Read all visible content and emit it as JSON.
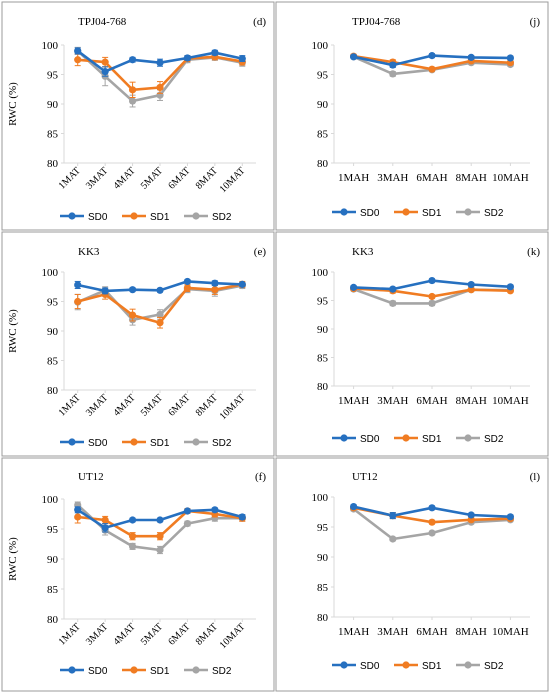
{
  "colors": {
    "SD0": "#2670C0",
    "SD1": "#F07C22",
    "SD2": "#A5A5A5",
    "axis": "#d9d9d9",
    "frame": "#9b9b9b"
  },
  "chart_data": [
    {
      "type": "line",
      "panel_tag": "(d)",
      "title": "TPJ04-768",
      "ylabel": "RWC (%)",
      "categories": [
        "1MAT",
        "3MAT",
        "4MAT",
        "5MAT",
        "6MAT",
        "8MAT",
        "10MAT"
      ],
      "ylim": [
        80,
        100
      ],
      "yticks": [
        80,
        85,
        90,
        95,
        100
      ],
      "rotate_x": true,
      "series": [
        {
          "name": "SD0",
          "values": [
            99.0,
            95.5,
            97.5,
            97.0,
            97.8,
            98.7,
            97.7
          ],
          "errors": [
            0.5,
            0.8,
            0.4,
            0.6,
            0.4,
            0.4,
            0.5
          ]
        },
        {
          "name": "SD1",
          "values": [
            97.5,
            97.1,
            92.4,
            92.8,
            97.7,
            98.0,
            97.2
          ],
          "errors": [
            1.0,
            0.8,
            1.3,
            1.0,
            0.5,
            0.5,
            0.6
          ]
        },
        {
          "name": "SD2",
          "values": [
            99.0,
            94.7,
            90.5,
            91.5,
            97.5,
            97.9,
            97.0
          ],
          "errors": [
            0.6,
            1.6,
            1.0,
            0.9,
            0.5,
            0.5,
            0.6
          ]
        }
      ]
    },
    {
      "type": "line",
      "panel_tag": "(j)",
      "title": "TPJ04-768",
      "ylabel": "",
      "categories": [
        "1MAH",
        "3MAH",
        "6MAH",
        "8MAH",
        "10MAH"
      ],
      "ylim": [
        80,
        100
      ],
      "yticks": [
        80,
        85,
        90,
        95,
        100
      ],
      "rotate_x": false,
      "series": [
        {
          "name": "SD0",
          "values": [
            98.0,
            96.6,
            98.2,
            97.9,
            97.8
          ],
          "errors": [
            0.3,
            0.4,
            0.3,
            0.3,
            0.3
          ]
        },
        {
          "name": "SD1",
          "values": [
            98.1,
            97.1,
            95.9,
            97.3,
            97.0
          ],
          "errors": [
            0.3,
            0.4,
            0.3,
            0.3,
            0.3
          ]
        },
        {
          "name": "SD2",
          "values": [
            98.0,
            95.1,
            95.8,
            97.0,
            96.7
          ],
          "errors": [
            0.3,
            0.4,
            0.3,
            0.3,
            0.3
          ]
        }
      ]
    },
    {
      "type": "line",
      "panel_tag": "(e)",
      "title": "KK3",
      "ylabel": "RWC (%)",
      "categories": [
        "1MAT",
        "3MAT",
        "4MAT",
        "5MAT",
        "6MAT",
        "8MAT",
        "10MAT"
      ],
      "ylim": [
        80,
        100
      ],
      "yticks": [
        80,
        85,
        90,
        95,
        100
      ],
      "rotate_x": true,
      "series": [
        {
          "name": "SD0",
          "values": [
            97.8,
            96.8,
            97.0,
            96.9,
            98.4,
            98.1,
            97.9
          ],
          "errors": [
            0.6,
            0.5,
            0.3,
            0.3,
            0.3,
            0.4,
            0.3
          ]
        },
        {
          "name": "SD1",
          "values": [
            95.0,
            96.2,
            92.7,
            91.4,
            97.3,
            97.0,
            97.9
          ],
          "errors": [
            1.2,
            0.8,
            1.0,
            0.9,
            0.6,
            0.8,
            0.5
          ]
        },
        {
          "name": "SD2",
          "values": [
            94.9,
            96.9,
            91.9,
            92.8,
            97.1,
            96.8,
            97.7
          ],
          "errors": [
            1.3,
            0.6,
            0.9,
            0.8,
            0.6,
            0.9,
            0.5
          ]
        }
      ]
    },
    {
      "type": "line",
      "panel_tag": "(k)",
      "title": "KK3",
      "ylabel": "",
      "categories": [
        "1MAH",
        "3MAH",
        "6MAH",
        "8MAH",
        "10MAH"
      ],
      "ylim": [
        80,
        100
      ],
      "yticks": [
        80,
        85,
        90,
        95,
        100
      ],
      "rotate_x": false,
      "series": [
        {
          "name": "SD0",
          "values": [
            97.3,
            97.0,
            98.5,
            97.8,
            97.4
          ],
          "errors": [
            0.3,
            0.3,
            0.3,
            0.3,
            0.3
          ]
        },
        {
          "name": "SD1",
          "values": [
            97.1,
            96.7,
            95.7,
            96.9,
            96.7
          ],
          "errors": [
            0.3,
            0.4,
            0.3,
            0.3,
            0.3
          ]
        },
        {
          "name": "SD2",
          "values": [
            97.0,
            94.5,
            94.5,
            96.9,
            96.8
          ],
          "errors": [
            0.3,
            0.4,
            0.4,
            0.3,
            0.3
          ]
        }
      ]
    },
    {
      "type": "line",
      "panel_tag": "(f)",
      "title": "UT12",
      "ylabel": "RWC (%)",
      "categories": [
        "1MAT",
        "3MAT",
        "4MAT",
        "5MAT",
        "6MAT",
        "8MAT",
        "10MAT"
      ],
      "ylim": [
        80,
        100
      ],
      "yticks": [
        80,
        85,
        90,
        95,
        100
      ],
      "rotate_x": true,
      "series": [
        {
          "name": "SD0",
          "values": [
            98.2,
            95.2,
            96.5,
            96.5,
            98.0,
            98.2,
            97.0
          ],
          "errors": [
            0.5,
            0.7,
            0.3,
            0.3,
            0.3,
            0.3,
            0.4
          ]
        },
        {
          "name": "SD1",
          "values": [
            97.0,
            96.5,
            93.8,
            93.8,
            98.0,
            97.5,
            96.8
          ],
          "errors": [
            1.0,
            0.6,
            0.6,
            0.6,
            0.4,
            0.5,
            0.5
          ]
        },
        {
          "name": "SD2",
          "values": [
            99.0,
            94.8,
            92.1,
            91.5,
            95.9,
            96.8,
            96.8
          ],
          "errors": [
            0.5,
            0.8,
            0.5,
            0.6,
            0.4,
            0.5,
            0.5
          ]
        }
      ]
    },
    {
      "type": "line",
      "panel_tag": "(l)",
      "title": "UT12",
      "ylabel": "",
      "categories": [
        "1MAH",
        "3MAH",
        "6MAH",
        "8MAH",
        "10MAH"
      ],
      "ylim": [
        80,
        100
      ],
      "yticks": [
        80,
        85,
        90,
        95,
        100
      ],
      "rotate_x": false,
      "series": [
        {
          "name": "SD0",
          "values": [
            98.4,
            96.9,
            98.2,
            97.0,
            96.7
          ],
          "errors": [
            0.3,
            0.5,
            0.3,
            0.3,
            0.3
          ]
        },
        {
          "name": "SD1",
          "values": [
            98.2,
            96.9,
            95.8,
            96.2,
            96.4
          ],
          "errors": [
            0.3,
            0.5,
            0.3,
            0.3,
            0.3
          ]
        },
        {
          "name": "SD2",
          "values": [
            98.0,
            93.0,
            94.0,
            95.8,
            96.2
          ],
          "errors": [
            0.3,
            0.3,
            0.3,
            0.3,
            0.3
          ]
        }
      ]
    }
  ]
}
